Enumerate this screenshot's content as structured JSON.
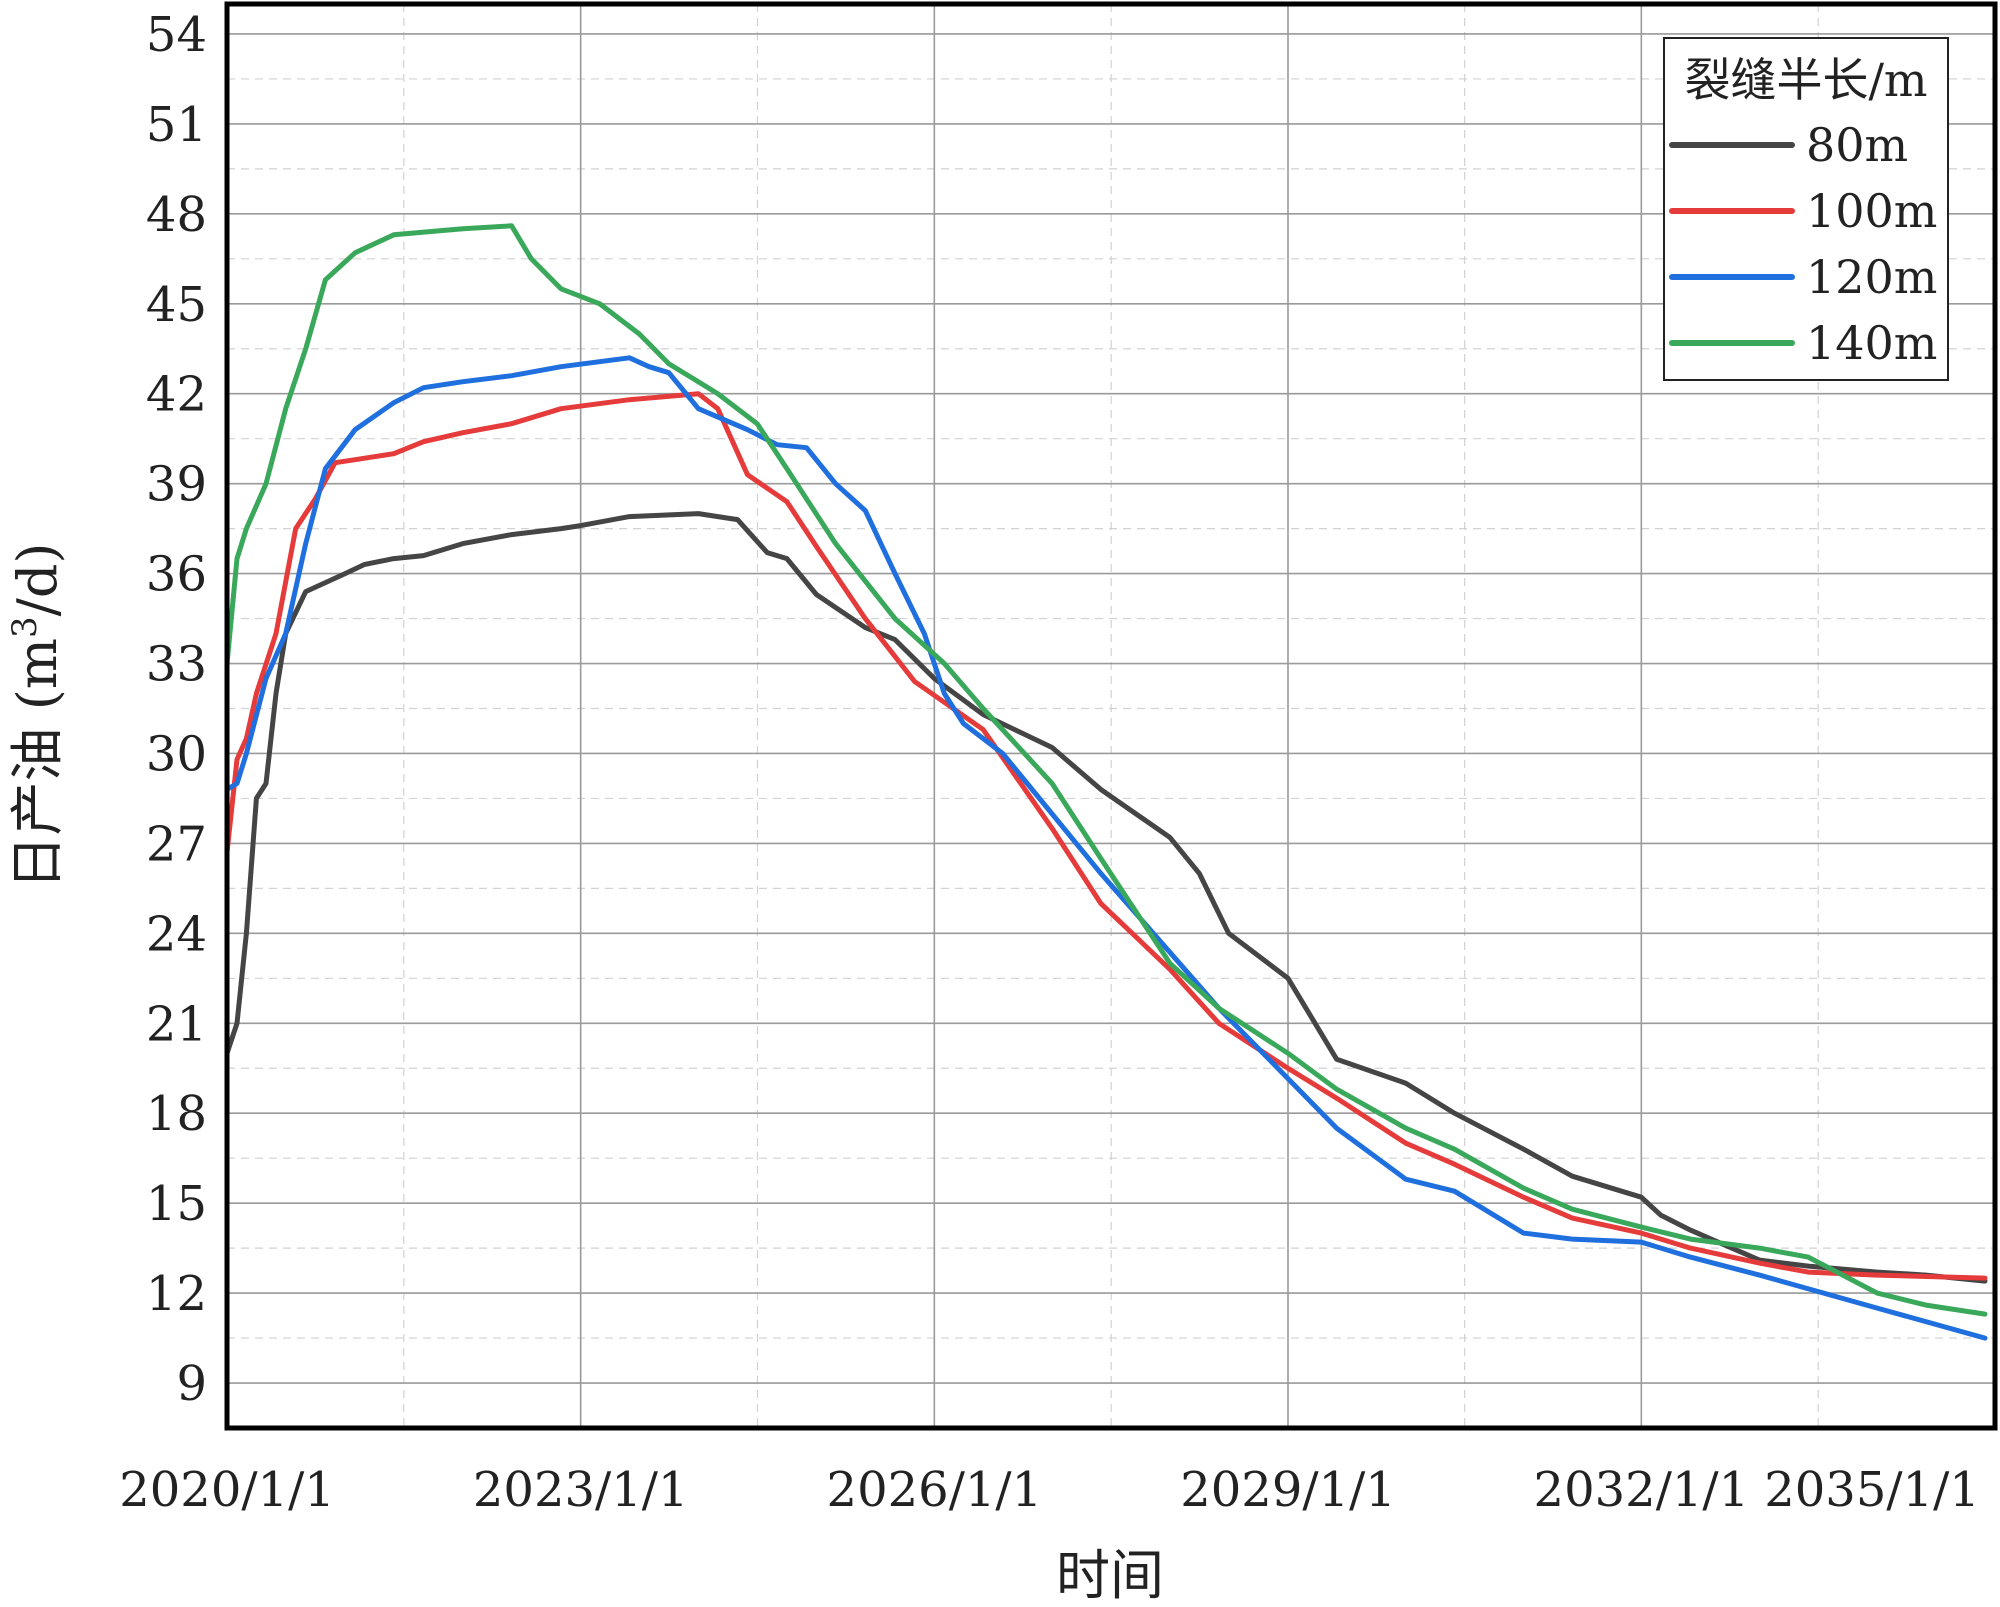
{
  "chart_data": {
    "type": "line",
    "xlabel": "时间",
    "ylabel": "日产油 (m³/d)",
    "ylabel_parts": {
      "prefix": "日产油 (m",
      "sup": "3",
      "suffix": "/d)"
    },
    "x_ticks": [
      "2020/1/1",
      "2023/1/1",
      "2026/1/1",
      "2029/1/1",
      "2032/1/1",
      "2035/1/1"
    ],
    "y_ticks": [
      9,
      12,
      15,
      18,
      21,
      24,
      27,
      30,
      33,
      36,
      39,
      42,
      45,
      48,
      51,
      54
    ],
    "xlim": [
      "2020/1/1",
      "2035/1/1"
    ],
    "ylim": [
      7.5,
      55
    ],
    "grid": true,
    "legend": {
      "title": "裂缝半长/m",
      "position": "top-right"
    },
    "series": [
      {
        "name": "80m",
        "color": "#454545",
        "x": [
          "2020/1/1",
          "2020/2/1",
          "2020/3/1",
          "2020/4/1",
          "2020/5/1",
          "2020/6/1",
          "2020/7/1",
          "2020/9/1",
          "2020/11/1",
          "2021/1/1",
          "2021/3/1",
          "2021/6/1",
          "2021/9/1",
          "2022/1/1",
          "2022/6/1",
          "2022/11/1",
          "2023/1/1",
          "2023/6/1",
          "2024/1/1",
          "2024/5/1",
          "2024/8/1",
          "2024/10/1",
          "2025/1/1",
          "2025/6/1",
          "2025/9/1",
          "2026/1/1",
          "2026/6/1",
          "2027/1/1",
          "2027/6/1",
          "2028/1/1",
          "2028/4/1",
          "2028/7/1",
          "2029/1/1",
          "2029/6/1",
          "2030/1/1",
          "2030/6/1",
          "2031/1/1",
          "2031/6/1",
          "2032/1/1",
          "2032/3/1",
          "2032/6/1",
          "2033/1/1",
          "2033/6/1",
          "2034/1/1",
          "2034/6/1",
          "2034/12/1"
        ],
        "y": [
          20.0,
          21.0,
          24.0,
          28.5,
          29.0,
          32.0,
          34.0,
          35.4,
          35.7,
          36.0,
          36.3,
          36.5,
          36.6,
          37.0,
          37.3,
          37.5,
          37.6,
          37.9,
          38.0,
          37.8,
          36.7,
          36.5,
          35.3,
          34.2,
          33.8,
          32.5,
          31.3,
          30.2,
          28.8,
          27.2,
          26.0,
          24.0,
          22.5,
          19.8,
          19.0,
          18.0,
          16.8,
          15.9,
          15.2,
          14.6,
          14.1,
          13.1,
          12.9,
          12.7,
          12.6,
          12.4
        ]
      },
      {
        "name": "100m",
        "color": "#e53b3b",
        "x": [
          "2020/1/1",
          "2020/2/1",
          "2020/3/1",
          "2020/4/1",
          "2020/6/1",
          "2020/8/1",
          "2020/10/1",
          "2020/12/1",
          "2021/2/1",
          "2021/6/1",
          "2021/9/1",
          "2022/1/1",
          "2022/6/1",
          "2022/9/1",
          "2022/11/1",
          "2023/6/1",
          "2024/1/1",
          "2024/3/1",
          "2024/6/1",
          "2024/10/1",
          "2025/1/1",
          "2025/6/1",
          "2025/11/1",
          "2026/6/1",
          "2027/1/1",
          "2027/6/1",
          "2028/1/1",
          "2028/6/1",
          "2029/1/1",
          "2029/6/1",
          "2030/1/1",
          "2030/6/1",
          "2031/1/1",
          "2031/6/1",
          "2032/1/1",
          "2032/6/1",
          "2033/1/1",
          "2033/6/1",
          "2034/1/1",
          "2034/12/1"
        ],
        "y": [
          26.7,
          29.8,
          30.5,
          32.0,
          34.0,
          37.5,
          38.5,
          39.7,
          39.8,
          40.0,
          40.4,
          40.7,
          41.0,
          41.3,
          41.5,
          41.8,
          42.0,
          41.5,
          39.3,
          38.4,
          36.9,
          34.5,
          32.4,
          30.8,
          27.5,
          25.0,
          22.8,
          21.0,
          19.5,
          18.5,
          17.0,
          16.3,
          15.2,
          14.5,
          14.0,
          13.5,
          13.0,
          12.7,
          12.6,
          12.5
        ]
      },
      {
        "name": "120m",
        "color": "#1f6fde",
        "x": [
          "2020/1/1",
          "2020/2/1",
          "2020/3/1",
          "2020/5/1",
          "2020/7/1",
          "2020/9/1",
          "2020/11/1",
          "2021/2/1",
          "2021/6/1",
          "2021/9/1",
          "2022/1/1",
          "2022/6/1",
          "2022/11/1",
          "2023/6/1",
          "2023/8/1",
          "2023/10/1",
          "2024/1/1",
          "2024/6/1",
          "2024/9/1",
          "2024/12/1",
          "2025/3/1",
          "2025/6/1",
          "2025/9/1",
          "2025/12/1",
          "2026/2/1",
          "2026/4/1",
          "2026/8/1",
          "2027/6/1",
          "2028/6/1",
          "2029/6/1",
          "2030/1/1",
          "2030/6/1",
          "2031/1/1",
          "2031/6/1",
          "2032/1/1",
          "2032/6/1",
          "2033/1/1",
          "2034/1/1",
          "2034/12/1"
        ],
        "y": [
          28.8,
          29.0,
          30.0,
          32.5,
          34.0,
          37.0,
          39.5,
          40.8,
          41.7,
          42.2,
          42.4,
          42.6,
          42.9,
          43.2,
          42.9,
          42.7,
          41.5,
          40.8,
          40.3,
          40.2,
          39.0,
          38.1,
          36.0,
          34.0,
          32.0,
          31.0,
          30.0,
          26.0,
          21.5,
          17.5,
          15.8,
          15.4,
          14.0,
          13.8,
          13.7,
          13.2,
          12.6,
          11.5,
          10.5
        ]
      },
      {
        "name": "140m",
        "color": "#3aa85a",
        "x": [
          "2020/1/1",
          "2020/2/1",
          "2020/3/1",
          "2020/5/1",
          "2020/7/1",
          "2020/9/1",
          "2020/11/1",
          "2021/2/1",
          "2021/6/1",
          "2022/1/1",
          "2022/6/1",
          "2022/8/1",
          "2022/11/1",
          "2023/3/1",
          "2023/7/1",
          "2023/10/1",
          "2024/3/1",
          "2024/7/1",
          "2024/10/1",
          "2025/3/1",
          "2025/9/1",
          "2026/2/1",
          "2026/6/1",
          "2027/1/1",
          "2027/6/1",
          "2028/1/1",
          "2028/6/1",
          "2029/1/1",
          "2029/6/1",
          "2030/1/1",
          "2030/6/1",
          "2031/1/1",
          "2031/6/1",
          "2032/1/1",
          "2032/6/1",
          "2033/1/1",
          "2033/6/1",
          "2034/1/1",
          "2034/6/1",
          "2034/12/1"
        ],
        "y": [
          33.0,
          36.5,
          37.5,
          39.0,
          41.5,
          43.5,
          45.8,
          46.7,
          47.3,
          47.5,
          47.6,
          46.5,
          45.5,
          45.0,
          44.0,
          43.0,
          42.0,
          41.0,
          39.5,
          37.0,
          34.5,
          33.0,
          31.5,
          29.0,
          26.5,
          23.0,
          21.5,
          20.0,
          18.8,
          17.5,
          16.8,
          15.5,
          14.8,
          14.2,
          13.8,
          13.5,
          13.2,
          12.0,
          11.6,
          11.3
        ]
      }
    ]
  }
}
